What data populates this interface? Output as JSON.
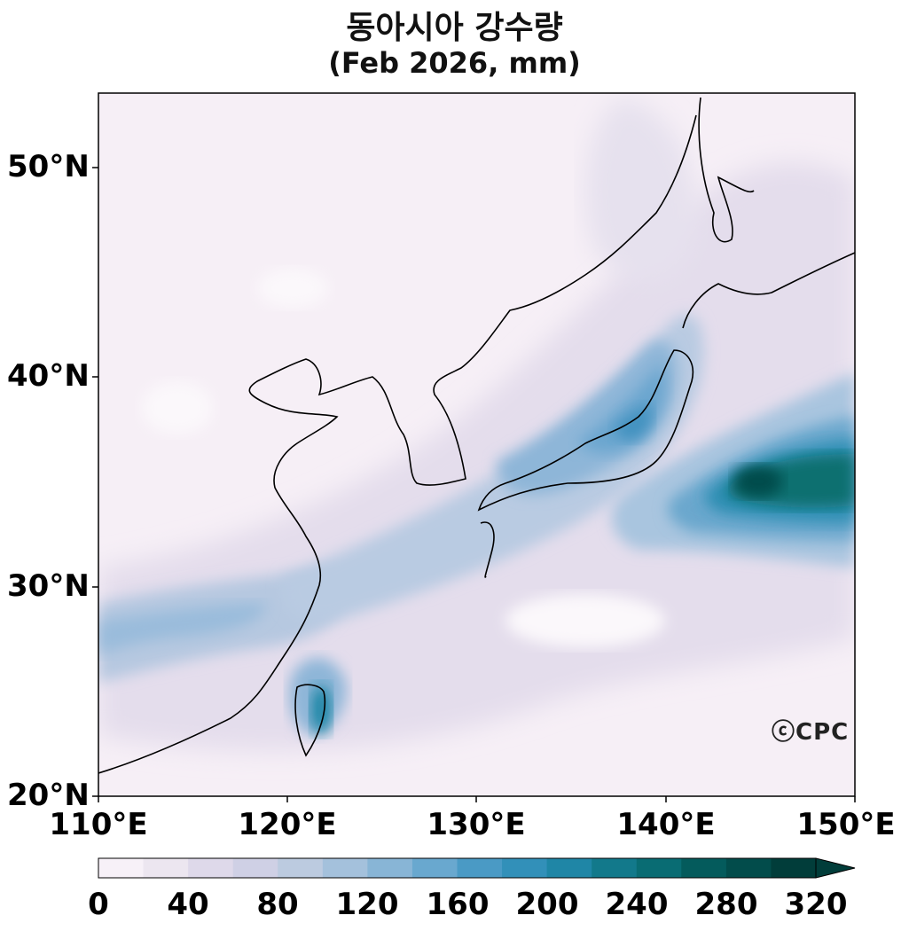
{
  "title": "동아시아 강수량",
  "subtitle": "(Feb 2026, mm)",
  "map": {
    "lat_range": [
      20,
      53.5
    ],
    "lon_range": [
      110,
      150
    ],
    "lat_ticks": [
      {
        "value": 50,
        "label": "50°N"
      },
      {
        "value": 40,
        "label": "40°N"
      },
      {
        "value": 30,
        "label": "30°N"
      },
      {
        "value": 20,
        "label": "20°N"
      }
    ],
    "lon_ticks": [
      {
        "value": 110,
        "label": "110°E"
      },
      {
        "value": 120,
        "label": "120°E"
      },
      {
        "value": 130,
        "label": "130°E"
      },
      {
        "value": 140,
        "label": "140°E"
      },
      {
        "value": 150,
        "label": "150°E"
      }
    ]
  },
  "colorbar": {
    "min": 0,
    "max": 320,
    "labels": [
      "0",
      "40",
      "80",
      "120",
      "160",
      "200",
      "240",
      "280",
      "320"
    ],
    "colors": [
      "#f7f1f8",
      "#ece6f0",
      "#ded9ea",
      "#cfd0e5",
      "#bccbe0",
      "#a4c1dc",
      "#88b5d6",
      "#69a8cf",
      "#4a9ac5",
      "#3290b9",
      "#1f86a6",
      "#12798b",
      "#096c73",
      "#045b5c",
      "#024c4b",
      "#013d3a"
    ]
  },
  "logo": "ⓒCPC"
}
